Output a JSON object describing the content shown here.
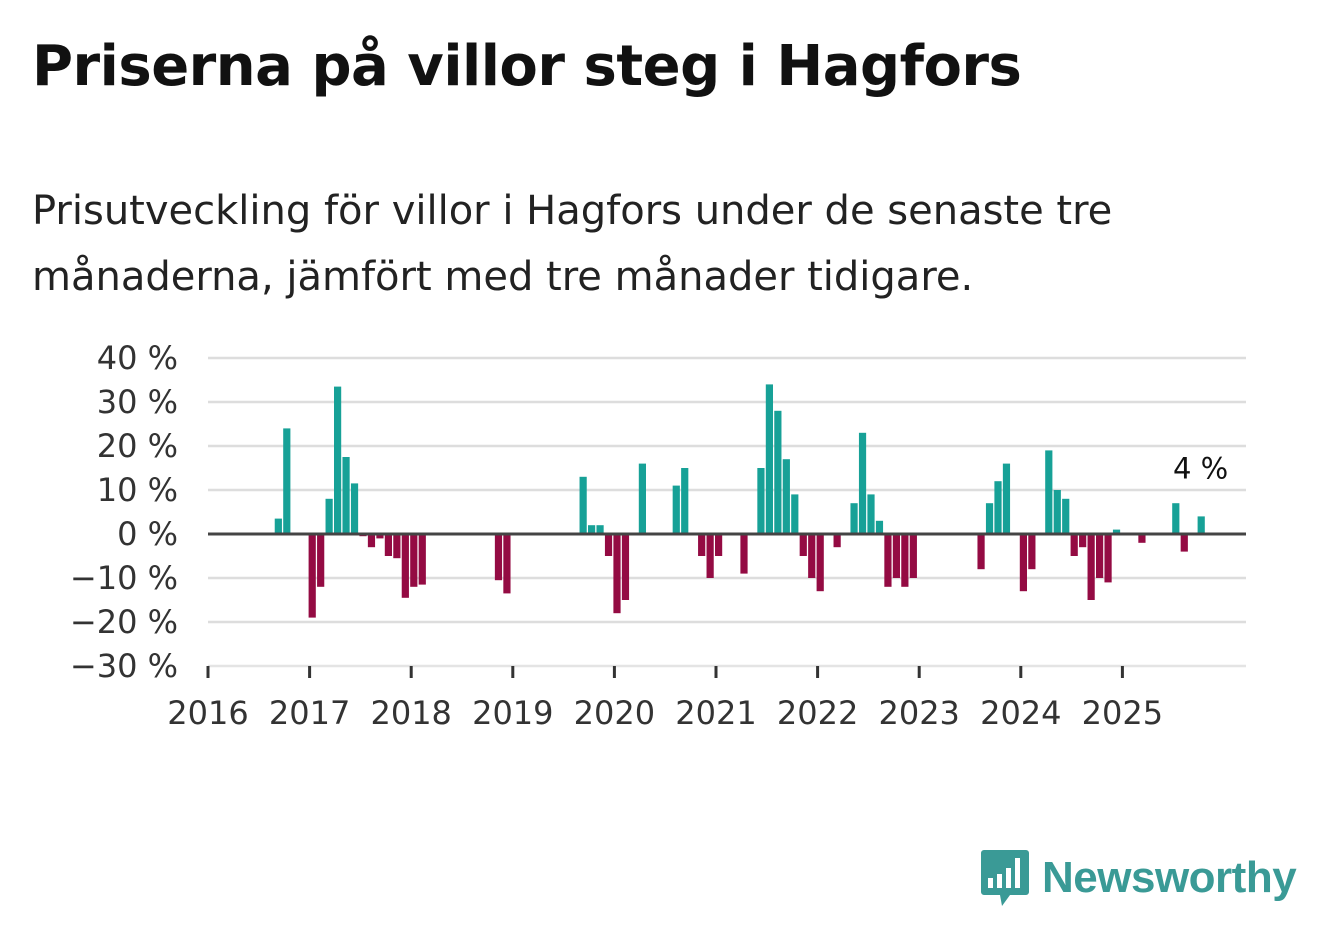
{
  "title": "Priserna på villor steg i Hagfors",
  "subtitle": "Prisutveckling för villor i Hagfors under de senaste tre månaderna, jämfört med tre månader tidigare.",
  "brand": {
    "name": "Newsworthy",
    "icon": "newsworthy-logo-icon"
  },
  "colors": {
    "positive": "#17a197",
    "negative": "#940b43",
    "grid": "#dddddd",
    "zero_line": "#444444",
    "brand": "#3a9a96"
  },
  "chart_data": {
    "type": "bar",
    "title": "Priserna på villor steg i Hagfors",
    "xlabel": "",
    "ylabel": "",
    "ylim": [
      -30,
      40
    ],
    "y_ticks": [
      {
        "value": 40,
        "label": "40 %"
      },
      {
        "value": 30,
        "label": "30 %"
      },
      {
        "value": 20,
        "label": "20 %"
      },
      {
        "value": 10,
        "label": "10 %"
      },
      {
        "value": 0,
        "label": "0 %"
      },
      {
        "value": -10,
        "label": "−10 %"
      },
      {
        "value": -20,
        "label": "−20 %"
      },
      {
        "value": -30,
        "label": "−30 %"
      }
    ],
    "x_ticks": [
      "2016",
      "2017",
      "2018",
      "2019",
      "2020",
      "2021",
      "2022",
      "2023",
      "2024",
      "2025"
    ],
    "x_start_year": 2016,
    "bars": [
      {
        "date": "2016-09",
        "value": 3.5
      },
      {
        "date": "2016-10",
        "value": 24
      },
      {
        "date": "2017-01",
        "value": -19
      },
      {
        "date": "2017-02",
        "value": -12
      },
      {
        "date": "2017-03",
        "value": 8
      },
      {
        "date": "2017-04",
        "value": 33.5
      },
      {
        "date": "2017-05",
        "value": 17.5
      },
      {
        "date": "2017-06",
        "value": 11.5
      },
      {
        "date": "2017-07",
        "value": -0.5
      },
      {
        "date": "2017-08",
        "value": -3
      },
      {
        "date": "2017-09",
        "value": -1
      },
      {
        "date": "2017-10",
        "value": -5
      },
      {
        "date": "2017-11",
        "value": -5.5
      },
      {
        "date": "2017-12",
        "value": -14.5
      },
      {
        "date": "2018-01",
        "value": -12
      },
      {
        "date": "2018-02",
        "value": -11.5
      },
      {
        "date": "2018-11",
        "value": -10.5
      },
      {
        "date": "2018-12",
        "value": -13.5
      },
      {
        "date": "2019-09",
        "value": 13
      },
      {
        "date": "2019-10",
        "value": 2
      },
      {
        "date": "2019-11",
        "value": 2
      },
      {
        "date": "2019-12",
        "value": -5
      },
      {
        "date": "2020-01",
        "value": -18
      },
      {
        "date": "2020-02",
        "value": -15
      },
      {
        "date": "2020-04",
        "value": 16
      },
      {
        "date": "2020-08",
        "value": 11
      },
      {
        "date": "2020-09",
        "value": 15
      },
      {
        "date": "2020-11",
        "value": -5
      },
      {
        "date": "2020-12",
        "value": -10
      },
      {
        "date": "2021-01",
        "value": -5
      },
      {
        "date": "2021-04",
        "value": -9
      },
      {
        "date": "2021-06",
        "value": 15
      },
      {
        "date": "2021-07",
        "value": 34
      },
      {
        "date": "2021-08",
        "value": 28
      },
      {
        "date": "2021-09",
        "value": 17
      },
      {
        "date": "2021-10",
        "value": 9
      },
      {
        "date": "2021-11",
        "value": -5
      },
      {
        "date": "2021-12",
        "value": -10
      },
      {
        "date": "2022-01",
        "value": -13
      },
      {
        "date": "2022-03",
        "value": -3
      },
      {
        "date": "2022-05",
        "value": 7
      },
      {
        "date": "2022-06",
        "value": 23
      },
      {
        "date": "2022-07",
        "value": 9
      },
      {
        "date": "2022-08",
        "value": 3
      },
      {
        "date": "2022-09",
        "value": -12
      },
      {
        "date": "2022-10",
        "value": -10
      },
      {
        "date": "2022-11",
        "value": -12
      },
      {
        "date": "2022-12",
        "value": -10
      },
      {
        "date": "2023-08",
        "value": -8
      },
      {
        "date": "2023-09",
        "value": 7
      },
      {
        "date": "2023-10",
        "value": 12
      },
      {
        "date": "2023-11",
        "value": 16
      },
      {
        "date": "2024-01",
        "value": -13
      },
      {
        "date": "2024-02",
        "value": -8
      },
      {
        "date": "2024-04",
        "value": 19
      },
      {
        "date": "2024-05",
        "value": 10
      },
      {
        "date": "2024-06",
        "value": 8
      },
      {
        "date": "2024-07",
        "value": -5
      },
      {
        "date": "2024-08",
        "value": -3
      },
      {
        "date": "2024-09",
        "value": -15
      },
      {
        "date": "2024-10",
        "value": -10
      },
      {
        "date": "2024-11",
        "value": -11
      },
      {
        "date": "2024-12",
        "value": 1
      },
      {
        "date": "2025-03",
        "value": -2
      },
      {
        "date": "2025-07",
        "value": 7
      },
      {
        "date": "2025-08",
        "value": -4
      },
      {
        "date": "2025-10",
        "value": 4
      }
    ],
    "annotation": {
      "date": "2025-10",
      "value": 4,
      "label": "4 %"
    }
  }
}
